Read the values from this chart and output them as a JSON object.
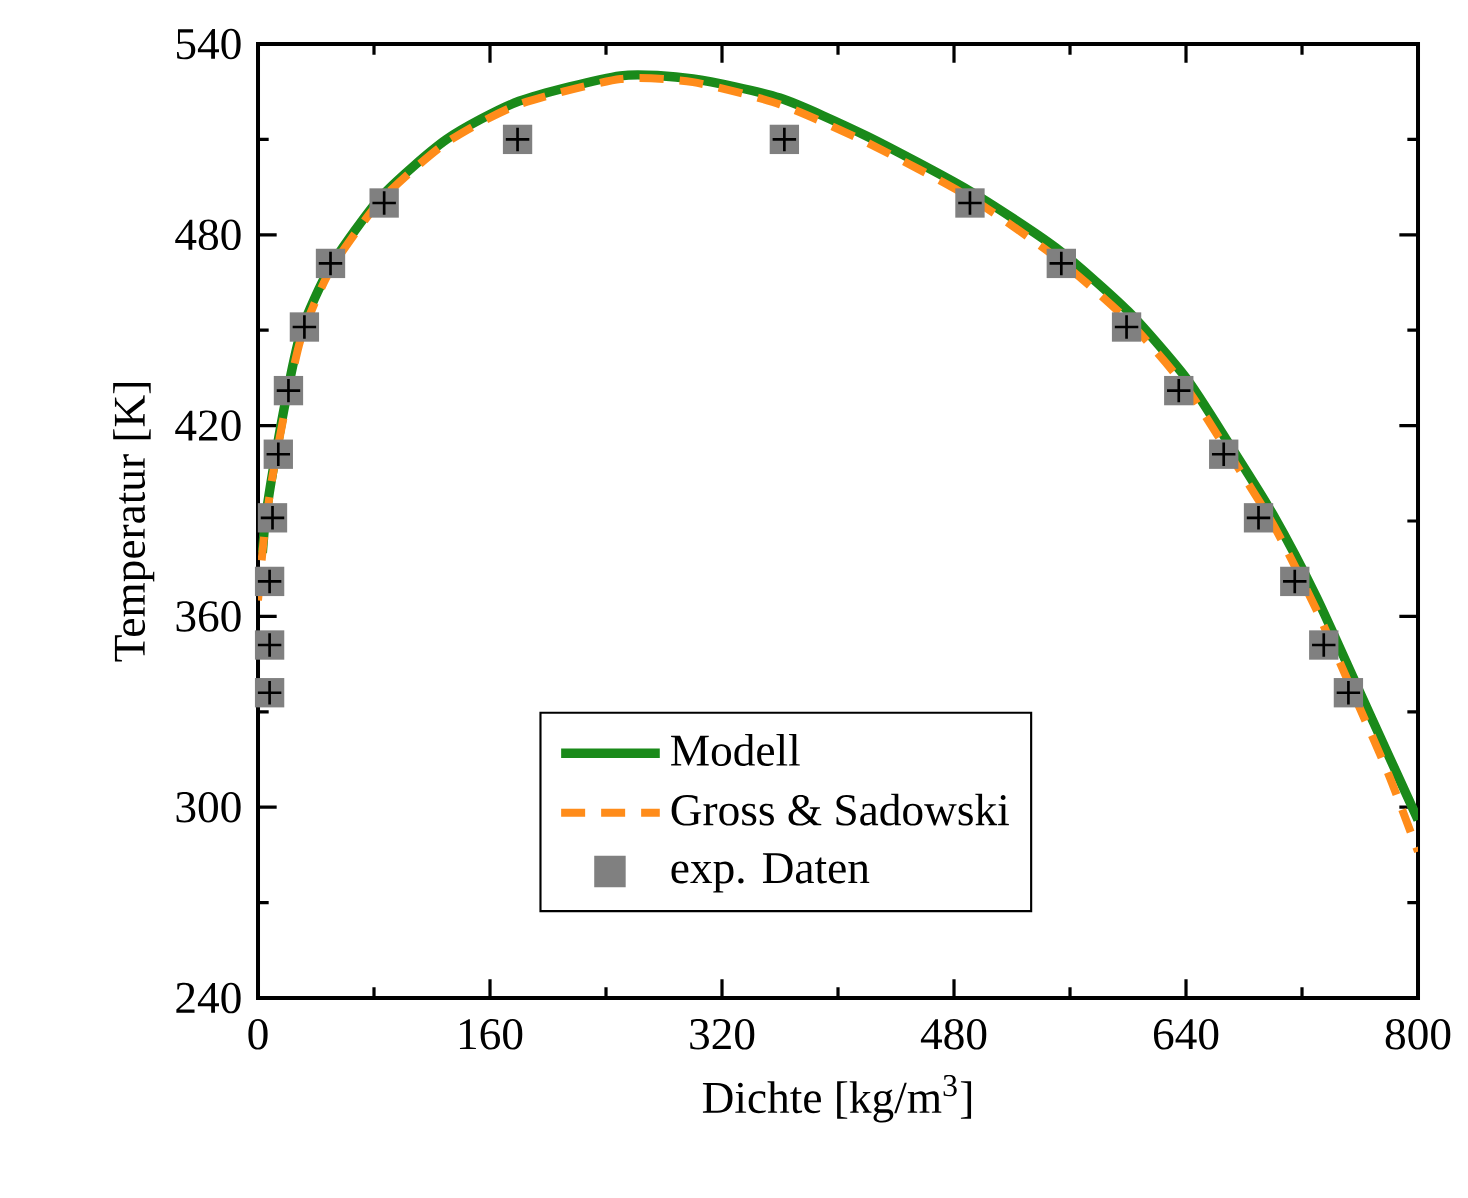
{
  "chart_data": {
    "type": "line",
    "xlabel": "Dichte [kg/m$^{3}$]",
    "ylabel": "Temperatur [K]",
    "xlim": [
      0,
      800
    ],
    "xticks": [
      0,
      160,
      320,
      480,
      640,
      800
    ],
    "ylim": [
      240,
      540
    ],
    "yticks": [
      240,
      300,
      360,
      420,
      480,
      540
    ],
    "grid": false,
    "legend": "bottom",
    "series": [
      {
        "name": "Modell",
        "color": "#1a8a1a",
        "line_style": "solid",
        "marker": "none",
        "x": [
          3,
          5,
          10,
          20,
          30,
          50,
          85,
          130,
          180,
          250,
          300,
          360,
          420,
          490,
          550,
          600,
          640,
          670,
          700,
          730,
          760,
          780,
          800
        ],
        "values": [
          380,
          390,
          405,
          430,
          450,
          470,
          492,
          510,
          522,
          530,
          529,
          523,
          511,
          494,
          476,
          456,
          435,
          414,
          392,
          366,
          336,
          316,
          296
        ]
      },
      {
        "name": "Gross & Sadowski",
        "color": "#ff8c1a",
        "line_style": "dashed",
        "marker": "none",
        "x": [
          0,
          3,
          5,
          10,
          20,
          30,
          50,
          85,
          130,
          180,
          250,
          300,
          360,
          420,
          490,
          550,
          600,
          640,
          670,
          700,
          730,
          760,
          780,
          800
        ],
        "values": [
          365,
          380,
          388,
          404,
          428,
          448,
          469,
          491,
          509,
          521,
          529,
          528,
          521,
          509,
          492,
          473,
          453,
          432,
          411,
          389,
          362,
          331,
          310,
          286
        ]
      },
      {
        "name": "exp. Daten",
        "type": "scatter",
        "color": "#808080",
        "marker": "square",
        "x": [
          8,
          8,
          8,
          10,
          14,
          21,
          32,
          50,
          87,
          179,
          363,
          491,
          554,
          599,
          635,
          666,
          690,
          715,
          735,
          752
        ],
        "values": [
          336,
          351,
          371,
          391,
          411,
          431,
          451,
          471,
          490,
          510,
          510,
          490,
          471,
          451,
          431,
          411,
          391,
          371,
          351,
          336
        ]
      }
    ]
  }
}
